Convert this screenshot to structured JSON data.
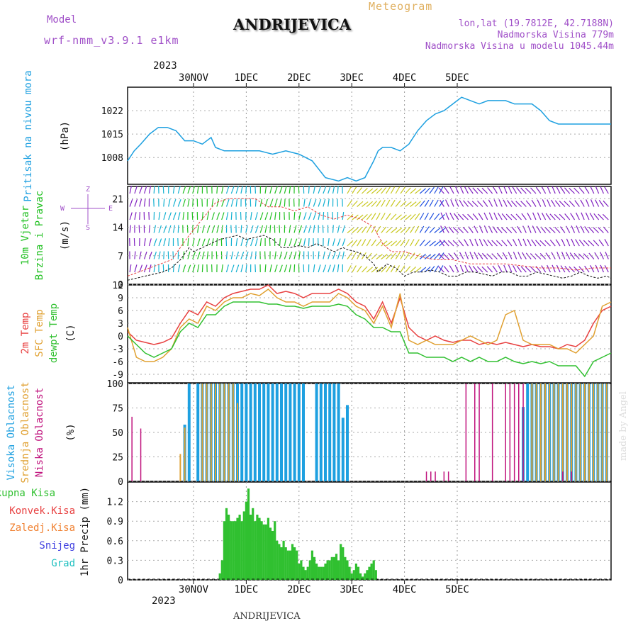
{
  "header": {
    "model_label": "Model",
    "model_value": "wrf-nmm_v3.9.1 e1km",
    "station": "ANDRIJEVICA",
    "meteogram_label": "Meteogram",
    "lonlat": "lon,lat (19.7812E, 42.7188N)",
    "elevation": "Nadmorska Visina 779m",
    "model_elevation": "Nadmorska Visina u modelu 1045.44m",
    "year_top": "2023",
    "year_bottom": "2023",
    "footer_station": "ANDRIJEVICA",
    "watermark": "made by Angel"
  },
  "colors": {
    "pressure": "#1ea0e0",
    "t2m": "#e84040",
    "tsfc": "#e0a030",
    "dewpoint": "#30c030",
    "high_cloud": "#1ea0e0",
    "mid_cloud": "#e0a030",
    "low_cloud": "#c0147e",
    "precip": "#30c030",
    "wind_purple": "#8020c0",
    "wind_cyan": "#10b0d0",
    "wind_green": "#20c020",
    "wind_yellow": "#c8c820",
    "wind_blue": "#2050e0"
  },
  "axes": {
    "x_ticks": [
      "30NOV",
      "1DEC",
      "2DEC",
      "3DEC",
      "4DEC",
      "5DEC"
    ]
  },
  "panels": {
    "pressure": {
      "title": "Pritisak na nivou mora",
      "unit": "(hPa)",
      "ticks": [
        "1008",
        "1015",
        "1022"
      ]
    },
    "wind": {
      "title1": "10m Vjetar",
      "title2": "Brzina i Pravac",
      "unit": "(m/s)",
      "ticks": [
        "0",
        "7",
        "14",
        "21"
      ],
      "compass_z": "Z",
      "compass_w": "W",
      "compass_e": "E",
      "compass_s": "S"
    },
    "temp": {
      "label_t2m": "2m Temp",
      "label_tsfc": "SFC Temp",
      "label_dew": "dewpt Temp",
      "unit": "(C)",
      "ticks": [
        "-9",
        "-6",
        "-3",
        "0",
        "3",
        "6",
        "9",
        "12"
      ]
    },
    "cloud": {
      "label_high": "Visoka Oblacnost",
      "label_mid": "Srednja Oblacnost",
      "label_low": "Niska Oblacnost",
      "unit": "(%)",
      "ticks": [
        "0",
        "25",
        "50",
        "75",
        "100"
      ]
    },
    "precip": {
      "label_total": "Ukupna Kisa",
      "label_conv": "Konvek.Kisa",
      "label_frz": "Zaledj.Kisa",
      "label_snow": "Snijeg",
      "label_hail": "Grad",
      "unit": "1hr Precip (mm)",
      "ticks": [
        "0",
        "0.3",
        "0.6",
        "0.9",
        "1.2"
      ]
    }
  },
  "chart_data": {
    "type": "line",
    "x_unit": "hours from 29NOV 18UTC",
    "pressure": {
      "ylim": [
        1000,
        1029
      ],
      "x": [
        0,
        3,
        6,
        10,
        14,
        18,
        22,
        26,
        30,
        34,
        38,
        40,
        44,
        48,
        54,
        60,
        66,
        72,
        78,
        84,
        90,
        96,
        100,
        104,
        108,
        112,
        114,
        116,
        118,
        120,
        124,
        128,
        132,
        136,
        140,
        144,
        148,
        150,
        152,
        156,
        160,
        164,
        168,
        172,
        176,
        180,
        184,
        188,
        192,
        196,
        200,
        204,
        210,
        216,
        220
      ],
      "y": [
        1007,
        1010,
        1012,
        1015,
        1017,
        1017,
        1016,
        1013,
        1013,
        1012,
        1014,
        1011,
        1010,
        1010,
        1010,
        1010,
        1009,
        1010,
        1009,
        1007,
        1002,
        1001,
        1002,
        1001,
        1002,
        1007,
        1010,
        1011,
        1011,
        1011,
        1010,
        1012,
        1016,
        1019,
        1021,
        1022,
        1024,
        1025,
        1026,
        1025,
        1024,
        1025,
        1025,
        1025,
        1024,
        1024,
        1024,
        1022,
        1019,
        1018,
        1018,
        1018,
        1018,
        1018,
        1018
      ]
    },
    "wind": {
      "ylim": [
        0,
        24
      ],
      "speed_x": [
        0,
        4,
        8,
        12,
        16,
        20,
        24,
        28,
        30,
        34,
        38,
        42,
        46,
        50,
        54,
        58,
        62,
        66,
        70,
        74,
        78,
        82,
        86,
        90,
        94,
        98,
        100,
        104,
        108,
        112,
        114,
        118,
        122,
        126,
        130,
        134,
        138,
        142,
        146,
        150,
        154,
        158,
        162,
        166,
        170,
        174,
        178,
        182,
        186,
        190,
        194,
        198,
        202,
        206,
        210,
        214,
        218,
        220
      ],
      "speed_y": [
        1,
        1.5,
        2,
        2.5,
        3,
        4,
        6,
        9,
        8,
        9,
        10,
        11,
        11.5,
        12,
        11,
        11.5,
        12,
        11,
        9,
        9,
        9.5,
        9,
        10,
        9,
        8,
        9,
        8.5,
        8,
        7,
        5,
        3,
        5,
        4,
        2,
        3,
        3,
        3.5,
        3,
        2,
        2,
        3,
        3,
        2.5,
        2,
        3,
        3,
        2,
        2,
        3,
        2.5,
        2,
        1.5,
        2,
        3,
        2,
        1.5,
        2,
        1.5
      ],
      "gust_x": [
        0,
        10,
        20,
        28,
        34,
        40,
        46,
        52,
        58,
        64,
        70,
        76,
        82,
        88,
        94,
        100,
        106,
        112,
        116,
        120,
        126,
        132,
        140,
        148,
        156,
        164,
        172,
        180,
        188,
        196,
        204,
        212,
        220
      ],
      "gust_y": [
        2,
        4,
        6,
        12,
        16,
        20,
        21,
        21,
        21,
        19,
        19,
        18,
        19,
        17,
        16,
        17,
        16,
        14,
        10,
        8,
        8,
        7,
        6,
        6,
        5,
        5,
        5,
        4.5,
        4,
        4,
        3.5,
        4,
        4
      ]
    },
    "temp": {
      "ylim": [
        -11,
        12
      ],
      "x": [
        0,
        4,
        8,
        12,
        16,
        20,
        24,
        28,
        32,
        36,
        40,
        44,
        48,
        52,
        56,
        60,
        64,
        68,
        72,
        76,
        80,
        84,
        88,
        92,
        96,
        100,
        104,
        108,
        112,
        116,
        120,
        124,
        128,
        132,
        136,
        140,
        144,
        148,
        152,
        156,
        160,
        164,
        168,
        172,
        176,
        180,
        184,
        188,
        192,
        196,
        200,
        204,
        208,
        212,
        216,
        220
      ],
      "t2m": [
        1,
        -1,
        -1.5,
        -2,
        -1.5,
        -0.5,
        3,
        6,
        5,
        8,
        7,
        9,
        10,
        10.5,
        11,
        11,
        12,
        10,
        10.5,
        10,
        9,
        10,
        10,
        10,
        11,
        10,
        8,
        7,
        4,
        8,
        3,
        9,
        2,
        0,
        -1,
        0,
        -1,
        -1.5,
        -1,
        -1,
        -2,
        -1.5,
        -2,
        -1.5,
        -2,
        -2.5,
        -2,
        -2.5,
        -2.5,
        -3,
        -2,
        -2.5,
        -1,
        3,
        6,
        7
      ],
      "tsfc": [
        2,
        -5,
        -6,
        -6,
        -5,
        -3,
        2,
        4,
        3,
        7,
        6,
        8,
        9,
        9,
        10,
        9.5,
        11,
        9,
        8,
        8,
        7,
        8,
        8,
        8,
        10,
        9,
        7,
        6,
        3,
        7,
        2,
        10,
        -1,
        -2,
        -1,
        -2,
        -2,
        -2,
        -1,
        0,
        -1,
        -2,
        -1,
        5,
        6,
        -1,
        -2,
        -2,
        -2,
        -3,
        -3,
        -4,
        -2,
        0,
        7,
        8
      ],
      "dew": [
        0,
        -2,
        -4,
        -5,
        -4,
        -3,
        1,
        3,
        2,
        5,
        5,
        7,
        8,
        8,
        8,
        8,
        7.5,
        7.5,
        7,
        7,
        6.5,
        7,
        7,
        7,
        7.5,
        7,
        5,
        4,
        2,
        2,
        1,
        1,
        -4,
        -4,
        -5,
        -5,
        -5,
        -6,
        -5,
        -6,
        -5,
        -6,
        -6,
        -5,
        -6,
        -6.5,
        -6,
        -6.5,
        -6,
        -7,
        -7,
        -7,
        -9.5,
        -6,
        -5,
        -4
      ]
    },
    "cloud": {
      "ylim": [
        0,
        100
      ],
      "high_x": [
        26,
        28,
        32,
        34,
        36,
        38,
        40,
        42,
        44,
        46,
        48,
        50,
        52,
        54,
        56,
        58,
        60,
        62,
        64,
        66,
        68,
        70,
        72,
        74,
        76,
        78,
        80,
        86,
        88,
        90,
        92,
        94,
        96,
        98,
        100,
        102,
        104,
        106,
        108,
        110,
        112,
        114,
        116,
        118,
        120,
        122,
        124,
        126,
        128,
        130,
        132,
        134,
        136,
        138,
        140,
        142,
        144,
        146,
        148,
        150,
        152,
        154,
        156,
        158,
        160,
        162,
        164,
        166,
        168,
        170,
        172,
        174,
        176,
        178,
        180,
        182,
        184,
        186,
        188,
        190,
        192,
        194,
        196,
        198,
        200,
        202,
        204,
        206,
        208,
        210,
        212,
        214,
        216,
        218
      ],
      "high_y": [
        58,
        100,
        100,
        100,
        100,
        100,
        100,
        100,
        100,
        100,
        100,
        100,
        100,
        100,
        100,
        100,
        100,
        100,
        100,
        100,
        100,
        100,
        100,
        100,
        100,
        100,
        100,
        100,
        100,
        100,
        100,
        100,
        100,
        65,
        78,
        0,
        0,
        0,
        0,
        0,
        0,
        0,
        0,
        0,
        0,
        0,
        0,
        0,
        0,
        0,
        0,
        0,
        0,
        0,
        0,
        0,
        0,
        0,
        0,
        0,
        0,
        0,
        0,
        0,
        0,
        0,
        0,
        0,
        0,
        0,
        0,
        0,
        0,
        0,
        76,
        100,
        100,
        100,
        100,
        100,
        100,
        100,
        100,
        100,
        100,
        100,
        100,
        100,
        100,
        100,
        100,
        100,
        100,
        100
      ],
      "mid_x": [
        24,
        26,
        34,
        36,
        38,
        40,
        42,
        44,
        46,
        48,
        50,
        184,
        186,
        188,
        190,
        192,
        194,
        196,
        198,
        200,
        202,
        204,
        206,
        208,
        210,
        212,
        214,
        216,
        218
      ],
      "mid_y": [
        28,
        55,
        100,
        100,
        100,
        100,
        100,
        100,
        100,
        100,
        80,
        100,
        100,
        100,
        100,
        100,
        100,
        100,
        100,
        100,
        100,
        100,
        100,
        100,
        100,
        100,
        100,
        100,
        100
      ],
      "low_x": [
        2,
        6,
        136,
        138,
        140,
        144,
        146,
        154,
        158,
        160,
        166,
        172,
        174,
        176,
        178,
        180,
        198,
        202
      ],
      "low_y": [
        66,
        54,
        10,
        10,
        10,
        10,
        10,
        100,
        100,
        100,
        100,
        100,
        100,
        100,
        100,
        100,
        10,
        10
      ]
    },
    "precip": {
      "ylim": [
        0,
        1.5
      ],
      "x": [
        42,
        43,
        44,
        45,
        46,
        47,
        48,
        49,
        50,
        51,
        52,
        53,
        54,
        55,
        56,
        57,
        58,
        59,
        60,
        61,
        62,
        63,
        64,
        65,
        66,
        67,
        68,
        69,
        70,
        71,
        72,
        73,
        74,
        75,
        76,
        77,
        78,
        79,
        80,
        81,
        82,
        83,
        84,
        85,
        86,
        87,
        88,
        89,
        90,
        91,
        92,
        93,
        94,
        95,
        96,
        97,
        98,
        99,
        100,
        101,
        102,
        103,
        104,
        105,
        106,
        107,
        108,
        109,
        110,
        111,
        112,
        113
      ],
      "y": [
        0.1,
        0.3,
        0.9,
        1.1,
        1.0,
        0.9,
        0.9,
        0.9,
        0.95,
        1.0,
        0.9,
        1.05,
        1.2,
        1.4,
        1.0,
        1.1,
        0.9,
        1.0,
        0.95,
        0.9,
        0.85,
        0.85,
        0.95,
        0.8,
        0.75,
        0.9,
        0.6,
        0.55,
        0.5,
        0.6,
        0.5,
        0.45,
        0.45,
        0.55,
        0.5,
        0.45,
        0.25,
        0.3,
        0.2,
        0.15,
        0.2,
        0.3,
        0.45,
        0.35,
        0.25,
        0.2,
        0.2,
        0.2,
        0.25,
        0.3,
        0.3,
        0.35,
        0.35,
        0.4,
        0.3,
        0.55,
        0.5,
        0.35,
        0.3,
        0.2,
        0.1,
        0.15,
        0.25,
        0.2,
        0.1,
        0.05,
        0.1,
        0.15,
        0.2,
        0.25,
        0.3,
        0.15
      ]
    }
  }
}
